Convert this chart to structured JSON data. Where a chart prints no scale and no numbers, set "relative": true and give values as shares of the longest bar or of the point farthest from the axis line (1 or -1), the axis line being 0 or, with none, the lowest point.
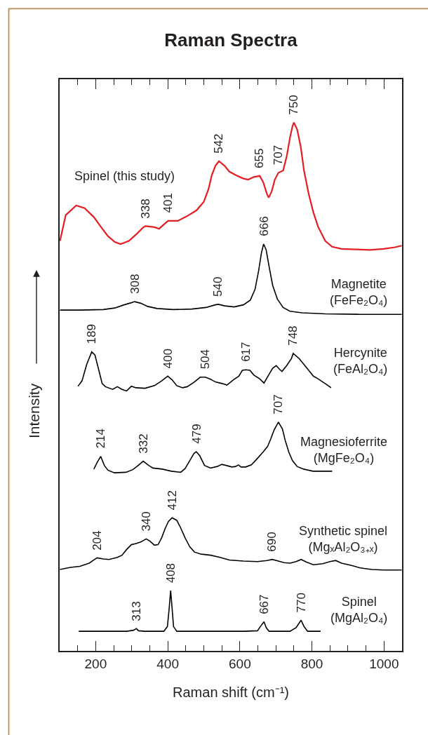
{
  "chart_data": {
    "type": "line",
    "title": "Raman Spectra",
    "xlabel": "Raman shift (cm⁻¹)",
    "ylabel": "Intensity",
    "relative": true,
    "xlim": [
      100,
      1050
    ],
    "xticks": [
      {
        "value": 150,
        "label": null
      },
      200,
      {
        "value": 250,
        "label": null
      },
      {
        "value": 300,
        "label": null
      },
      {
        "value": 350,
        "label": null
      },
      400,
      {
        "value": 450,
        "label": null
      },
      {
        "value": 500,
        "label": null
      },
      {
        "value": 550,
        "label": null
      },
      600,
      {
        "value": 650,
        "label": null
      },
      {
        "value": 700,
        "label": null
      },
      {
        "value": 750,
        "label": null
      },
      800,
      {
        "value": 850,
        "label": null
      },
      {
        "value": 900,
        "label": null
      },
      {
        "value": 950,
        "label": null
      },
      1000
    ],
    "series": [
      {
        "name": "Spinel (this study)",
        "color": "#e31e24",
        "x": [
          101,
          117,
          146,
          169,
          195,
          214,
          234,
          253,
          269,
          292,
          312,
          331,
          338,
          363,
          376,
          389,
          401,
          428,
          454,
          480,
          500,
          513,
          522,
          532,
          542,
          558,
          571,
          590,
          610,
          623,
          639,
          655,
          665,
          675,
          680,
          688,
          697,
          707,
          720,
          730,
          739,
          746,
          750,
          759,
          769,
          778,
          791,
          804,
          817,
          837,
          856,
          882,
          921,
          960,
          999,
          1031,
          1049
        ],
        "values": [
          0.776,
          0.825,
          0.843,
          0.838,
          0.821,
          0.803,
          0.785,
          0.774,
          0.77,
          0.776,
          0.788,
          0.801,
          0.804,
          0.802,
          0.799,
          0.807,
          0.814,
          0.814,
          0.823,
          0.834,
          0.85,
          0.874,
          0.9,
          0.918,
          0.927,
          0.918,
          0.907,
          0.9,
          0.894,
          0.892,
          0.897,
          0.899,
          0.887,
          0.865,
          0.858,
          0.869,
          0.892,
          0.905,
          0.909,
          0.936,
          0.971,
          0.993,
          1.0,
          0.987,
          0.954,
          0.909,
          0.865,
          0.83,
          0.803,
          0.776,
          0.765,
          0.761,
          0.76,
          0.759,
          0.761,
          0.764,
          0.767
        ]
      },
      {
        "name": "Magnetite (FeFe₂O₄)",
        "color": "#000000",
        "x": [
          101,
          156,
          221,
          253,
          279,
          299,
          308,
          325,
          344,
          370,
          415,
          467,
          506,
          532,
          540,
          558,
          584,
          610,
          629,
          642,
          652,
          660,
          666,
          673,
          681,
          691,
          704,
          720,
          739,
          772,
          837,
          934,
          1049
        ],
        "values": [
          0.645,
          0.645,
          0.646,
          0.649,
          0.655,
          0.659,
          0.661,
          0.658,
          0.652,
          0.648,
          0.646,
          0.647,
          0.65,
          0.655,
          0.656,
          0.653,
          0.651,
          0.655,
          0.664,
          0.684,
          0.719,
          0.754,
          0.77,
          0.759,
          0.728,
          0.692,
          0.666,
          0.65,
          0.643,
          0.64,
          0.638,
          0.637,
          0.637
        ]
      },
      {
        "name": "Hercynite (FeAl₂O₄)",
        "color": "#000000",
        "x": [
          151,
          162,
          175,
          189,
          198,
          208,
          218,
          227,
          247,
          260,
          273,
          286,
          299,
          312,
          337,
          363,
          383,
          400,
          412,
          425,
          441,
          454,
          474,
          490,
          504,
          519,
          532,
          551,
          564,
          584,
          597,
          607,
          617,
          628,
          639,
          655,
          667,
          678,
          691,
          701,
          710,
          717,
          730,
          743,
          748,
          765,
          778,
          791,
          804,
          817,
          830,
          843,
          853
        ],
        "values": [
          0.501,
          0.511,
          0.542,
          0.566,
          0.56,
          0.533,
          0.506,
          0.5,
          0.495,
          0.5,
          0.495,
          0.492,
          0.501,
          0.498,
          0.497,
          0.502,
          0.511,
          0.52,
          0.513,
          0.502,
          0.498,
          0.5,
          0.509,
          0.518,
          0.518,
          0.514,
          0.509,
          0.506,
          0.503,
          0.514,
          0.52,
          0.531,
          0.532,
          0.531,
          0.522,
          0.515,
          0.507,
          0.52,
          0.535,
          0.54,
          0.533,
          0.529,
          0.54,
          0.553,
          0.563,
          0.553,
          0.542,
          0.531,
          0.52,
          0.515,
          0.509,
          0.503,
          0.498
        ]
      },
      {
        "name": "Magnesioferrite (MgFe₂O₄)",
        "color": "#000000",
        "x": [
          195,
          205,
          214,
          224,
          234,
          252,
          284,
          303,
          318,
          332,
          347,
          359,
          385,
          410,
          436,
          448,
          461,
          473,
          479,
          489,
          502,
          519,
          537,
          550,
          562,
          578,
          588,
          596,
          603,
          616,
          632,
          647,
          664,
          677,
          685,
          695,
          707,
          718,
          726,
          736,
          746,
          759,
          777,
          803,
          856
        ],
        "values": [
          0.344,
          0.358,
          0.368,
          0.351,
          0.342,
          0.337,
          0.338,
          0.343,
          0.351,
          0.359,
          0.351,
          0.346,
          0.344,
          0.34,
          0.338,
          0.345,
          0.36,
          0.374,
          0.377,
          0.369,
          0.351,
          0.346,
          0.349,
          0.353,
          0.351,
          0.348,
          0.349,
          0.352,
          0.348,
          0.348,
          0.352,
          0.363,
          0.376,
          0.387,
          0.4,
          0.418,
          0.433,
          0.42,
          0.398,
          0.376,
          0.36,
          0.349,
          0.344,
          0.34,
          0.34
        ]
      },
      {
        "name": "Synthetic spinel (MgₓAl₂O₃₊ₓ)",
        "color": "#000000",
        "x": [
          101,
          130,
          156,
          182,
          195,
          204,
          221,
          237,
          260,
          273,
          286,
          299,
          312,
          325,
          340,
          350,
          363,
          373,
          383,
          393,
          402,
          412,
          425,
          435,
          448,
          461,
          474,
          493,
          519,
          545,
          571,
          610,
          649,
          675,
          690,
          707,
          723,
          739,
          756,
          770,
          785,
          804,
          830,
          850,
          866,
          882,
          908,
          934,
          966,
          999,
          1049
        ],
        "values": [
          0.154,
          0.158,
          0.16,
          0.166,
          0.172,
          0.176,
          0.174,
          0.173,
          0.177,
          0.181,
          0.192,
          0.201,
          0.203,
          0.206,
          0.212,
          0.208,
          0.2,
          0.201,
          0.214,
          0.232,
          0.245,
          0.252,
          0.247,
          0.234,
          0.214,
          0.197,
          0.187,
          0.183,
          0.181,
          0.177,
          0.172,
          0.17,
          0.169,
          0.171,
          0.173,
          0.17,
          0.167,
          0.166,
          0.169,
          0.173,
          0.168,
          0.163,
          0.165,
          0.169,
          0.171,
          0.166,
          0.162,
          0.157,
          0.154,
          0.153,
          0.153
        ]
      },
      {
        "name": "Spinel (MgAl₂O₄)",
        "color": "#000000",
        "x": [
          153,
          221,
          286,
          305,
          313,
          319,
          337,
          389,
          399,
          404,
          408,
          412,
          416,
          425,
          480,
          545,
          610,
          649,
          657,
          667,
          673,
          681,
          739,
          756,
          770,
          778,
          788,
          824
        ],
        "values": [
          0.037,
          0.037,
          0.037,
          0.039,
          0.042,
          0.038,
          0.037,
          0.037,
          0.046,
          0.081,
          0.114,
          0.081,
          0.046,
          0.037,
          0.037,
          0.037,
          0.037,
          0.038,
          0.046,
          0.055,
          0.044,
          0.037,
          0.037,
          0.044,
          0.058,
          0.046,
          0.037,
          0.037
        ]
      }
    ],
    "annotations": [
      {
        "text": "338",
        "x": 338,
        "y": 0.804
      },
      {
        "text": "401",
        "x": 401,
        "y": 0.814
      },
      {
        "text": "542",
        "x": 542,
        "y": 0.927
      },
      {
        "text": "655",
        "x": 655,
        "y": 0.899
      },
      {
        "text": "707",
        "x": 707,
        "y": 0.905
      },
      {
        "text": "750",
        "x": 750,
        "y": 1.0
      },
      {
        "text": "308",
        "x": 308,
        "y": 0.661
      },
      {
        "text": "540",
        "x": 540,
        "y": 0.656
      },
      {
        "text": "666",
        "x": 666,
        "y": 0.77
      },
      {
        "text": "189",
        "x": 189,
        "y": 0.566
      },
      {
        "text": "400",
        "x": 400,
        "y": 0.52
      },
      {
        "text": "504",
        "x": 504,
        "y": 0.518
      },
      {
        "text": "617",
        "x": 617,
        "y": 0.532
      },
      {
        "text": "748",
        "x": 748,
        "y": 0.563
      },
      {
        "text": "214",
        "x": 214,
        "y": 0.368
      },
      {
        "text": "332",
        "x": 332,
        "y": 0.359
      },
      {
        "text": "479",
        "x": 479,
        "y": 0.377
      },
      {
        "text": "707",
        "x": 707,
        "y": 0.433
      },
      {
        "text": "204",
        "x": 204,
        "y": 0.176
      },
      {
        "text": "340",
        "x": 340,
        "y": 0.212
      },
      {
        "text": "412",
        "x": 412,
        "y": 0.252
      },
      {
        "text": "690",
        "x": 690,
        "y": 0.173
      },
      {
        "text": "313",
        "x": 313,
        "y": 0.042
      },
      {
        "text": "408",
        "x": 408,
        "y": 0.114
      },
      {
        "text": "667",
        "x": 667,
        "y": 0.055
      },
      {
        "text": "770",
        "x": 770,
        "y": 0.058
      }
    ]
  }
}
